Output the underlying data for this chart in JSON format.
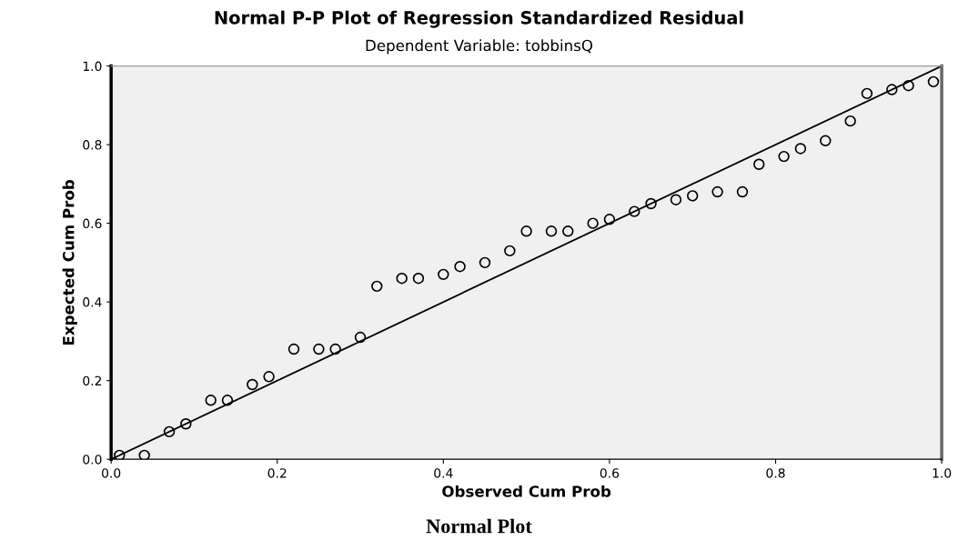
{
  "chart_data": {
    "type": "scatter",
    "title": "Normal P-P Plot of Regression Standardized Residual",
    "subtitle": "Dependent Variable: tobbinsQ",
    "xlabel": "Observed Cum Prob",
    "ylabel": "Expected Cum Prob",
    "annotations": [
      "Normal Plot"
    ],
    "xlim": [
      0,
      1
    ],
    "ylim": [
      0,
      1
    ],
    "xticks": [
      {
        "value": 0,
        "label": "0.0"
      },
      {
        "value": 0.2,
        "label": "0.2"
      },
      {
        "value": 0.4,
        "label": "0.4"
      },
      {
        "value": 0.6,
        "label": "0.6"
      },
      {
        "value": 0.8,
        "label": "0.8"
      },
      {
        "value": 1,
        "label": "1.0"
      }
    ],
    "yticks": [
      {
        "value": 0,
        "label": "0.0"
      },
      {
        "value": 0.2,
        "label": "0.2"
      },
      {
        "value": 0.4,
        "label": "0.4"
      },
      {
        "value": 0.6,
        "label": "0.6"
      },
      {
        "value": 0.8,
        "label": "0.8"
      },
      {
        "value": 1,
        "label": "1.0"
      }
    ],
    "grid": false,
    "legend": false,
    "marker": "circle",
    "series": [
      {
        "color": "#000000",
        "x": [
          0.01,
          0.04,
          0.07,
          0.09,
          0.12,
          0.14,
          0.17,
          0.19,
          0.22,
          0.25,
          0.27,
          0.3,
          0.32,
          0.35,
          0.37,
          0.4,
          0.42,
          0.45,
          0.48,
          0.5,
          0.53,
          0.55,
          0.58,
          0.6,
          0.63,
          0.65,
          0.68,
          0.7,
          0.73,
          0.76,
          0.78,
          0.81,
          0.83,
          0.86,
          0.89,
          0.91,
          0.94,
          0.96,
          0.99
        ],
        "values": [
          0.01,
          0.01,
          0.07,
          0.09,
          0.15,
          0.15,
          0.19,
          0.21,
          0.28,
          0.28,
          0.28,
          0.31,
          0.44,
          0.46,
          0.46,
          0.47,
          0.49,
          0.5,
          0.53,
          0.58,
          0.58,
          0.58,
          0.6,
          0.61,
          0.63,
          0.65,
          0.66,
          0.67,
          0.68,
          0.68,
          0.75,
          0.77,
          0.79,
          0.81,
          0.86,
          0.93,
          0.94,
          0.95,
          0.96
        ]
      },
      {
        "type": "line",
        "marker": "none",
        "color": "#000000",
        "x": [
          0,
          1
        ],
        "values": [
          0,
          1
        ]
      }
    ]
  }
}
